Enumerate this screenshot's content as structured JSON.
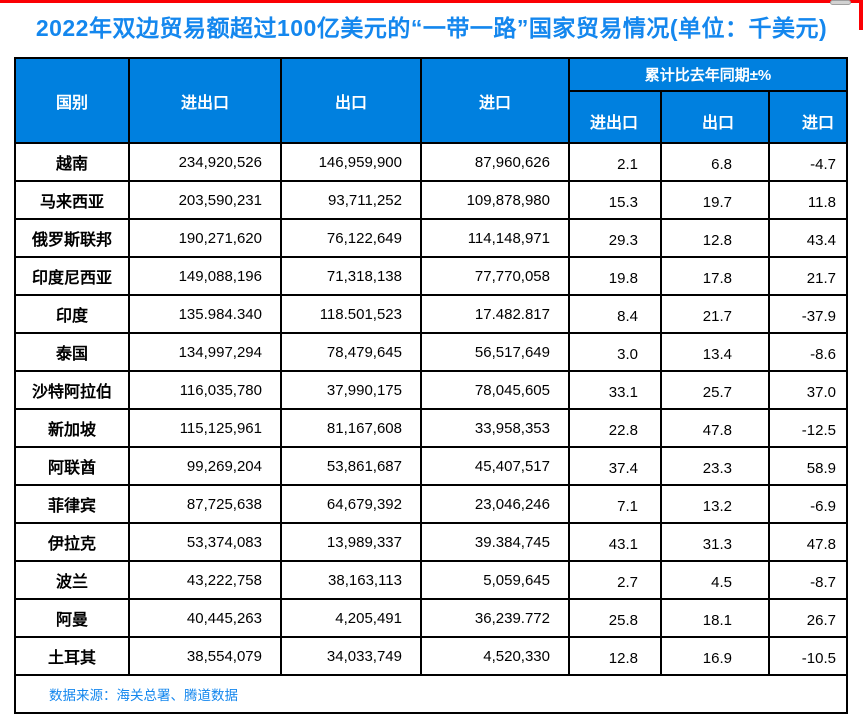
{
  "title": "2022年双边贸易额超过100亿美元的“一带一路”国家贸易情况(单位：千美元)",
  "footer": {
    "source": "数据来源：海关总署、腾道数据"
  },
  "colors": {
    "title_blue": "#1487EE",
    "header_bg": "#0080DF",
    "header_text": "#FFFFFF",
    "border": "#000000",
    "accent_red": "#FB0003"
  },
  "chart_data": {
    "type": "table",
    "title": "2022年双边贸易额超过100亿美元的“一带一路”国家贸易情况(单位：千美元)",
    "headers": {
      "country": "国别",
      "total": "进出口",
      "export": "出口",
      "import": "进口",
      "yoy_group": "累计比去年同期±%",
      "yoy_total": "进出口",
      "yoy_export": "出口",
      "yoy_import": "进口"
    },
    "rows": [
      {
        "country": "越南",
        "total": "234,920,526",
        "export": "146,959,900",
        "import": "87,960,626",
        "yoy_total": "2.1",
        "yoy_export": "6.8",
        "yoy_import": "-4.7"
      },
      {
        "country": "马来西亚",
        "total": "203,590,231",
        "export": "93,711,252",
        "import": "109,878,980",
        "yoy_total": "15.3",
        "yoy_export": "19.7",
        "yoy_import": "11.8"
      },
      {
        "country": "俄罗斯联邦",
        "total": "190,271,620",
        "export": "76,122,649",
        "import": "114,148,971",
        "yoy_total": "29.3",
        "yoy_export": "12.8",
        "yoy_import": "43.4"
      },
      {
        "country": "印度尼西亚",
        "total": "149,088,196",
        "export": "71,318,138",
        "import": "77,770,058",
        "yoy_total": "19.8",
        "yoy_export": "17.8",
        "yoy_import": "21.7"
      },
      {
        "country": "印度",
        "total": "135.984.340",
        "export": "118.501,523",
        "import": "17.482.817",
        "yoy_total": "8.4",
        "yoy_export": "21.7",
        "yoy_import": "-37.9"
      },
      {
        "country": "泰国",
        "total": "134,997,294",
        "export": "78,479,645",
        "import": "56,517,649",
        "yoy_total": "3.0",
        "yoy_export": "13.4",
        "yoy_import": "-8.6"
      },
      {
        "country": "沙特阿拉伯",
        "total": "116,035,780",
        "export": "37,990,175",
        "import": "78,045,605",
        "yoy_total": "33.1",
        "yoy_export": "25.7",
        "yoy_import": "37.0"
      },
      {
        "country": "新加坡",
        "total": "115,125,961",
        "export": "81,167,608",
        "import": "33,958,353",
        "yoy_total": "22.8",
        "yoy_export": "47.8",
        "yoy_import": "-12.5"
      },
      {
        "country": "阿联酋",
        "total": "99,269,204",
        "export": "53,861,687",
        "import": "45,407,517",
        "yoy_total": "37.4",
        "yoy_export": "23.3",
        "yoy_import": "58.9"
      },
      {
        "country": "菲律宾",
        "total": "87,725,638",
        "export": "64,679,392",
        "import": "23,046,246",
        "yoy_total": "7.1",
        "yoy_export": "13.2",
        "yoy_import": "-6.9"
      },
      {
        "country": "伊拉克",
        "total": "53,374,083",
        "export": "13,989,337",
        "import": "39.384,745",
        "yoy_total": "43.1",
        "yoy_export": "31.3",
        "yoy_import": "47.8"
      },
      {
        "country": "波兰",
        "total": "43,222,758",
        "export": "38,163,113",
        "import": "5,059,645",
        "yoy_total": "2.7",
        "yoy_export": "4.5",
        "yoy_import": "-8.7"
      },
      {
        "country": "阿曼",
        "total": "40,445,263",
        "export": "4,205,491",
        "import": "36,239.772",
        "yoy_total": "25.8",
        "yoy_export": "18.1",
        "yoy_import": "26.7"
      },
      {
        "country": "土耳其",
        "total": "38,554,079",
        "export": "34,033,749",
        "import": "4,520,330",
        "yoy_total": "12.8",
        "yoy_export": "16.9",
        "yoy_import": "-10.5"
      }
    ]
  }
}
